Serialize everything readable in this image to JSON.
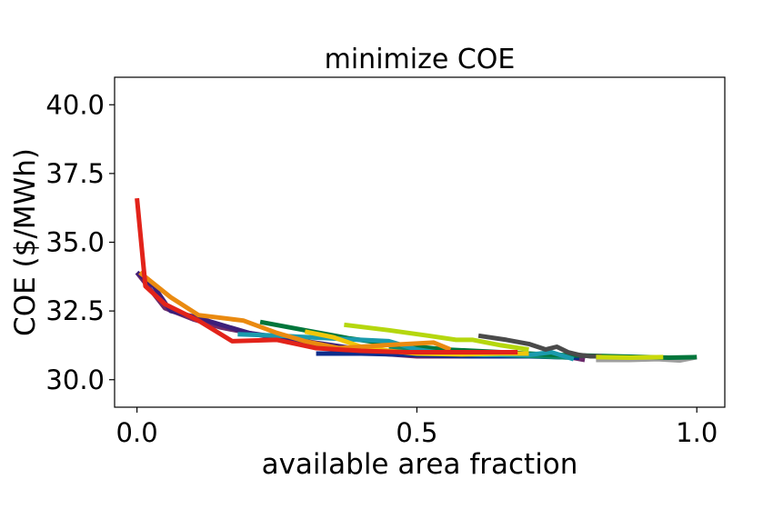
{
  "chart_data": {
    "type": "line",
    "title": "minimize COE",
    "xlabel": "available area fraction",
    "ylabel": "COE ($/MWh)",
    "xlim": [
      -0.04,
      1.05
    ],
    "ylim": [
      29.0,
      41.0
    ],
    "xticks": [
      {
        "value": 0.0,
        "label": "0.0"
      },
      {
        "value": 0.5,
        "label": "0.5"
      },
      {
        "value": 1.0,
        "label": "1.0"
      }
    ],
    "yticks": [
      {
        "value": 30.0,
        "label": "30.0"
      },
      {
        "value": 32.5,
        "label": "32.5"
      },
      {
        "value": 35.0,
        "label": "35.0"
      },
      {
        "value": 37.5,
        "label": "37.5"
      },
      {
        "value": 40.0,
        "label": "40.0"
      }
    ],
    "grid": false,
    "series": [
      {
        "color": "#9e9e9e",
        "x": [
          0.82,
          0.88,
          0.93,
          0.97,
          1.0
        ],
        "y": [
          30.72,
          30.72,
          30.75,
          30.7,
          30.82
        ]
      },
      {
        "color": "#6b2a6b",
        "x": [
          0.0,
          0.05,
          0.1,
          0.15,
          0.2,
          0.3,
          0.4,
          0.5,
          0.6,
          0.7,
          0.75,
          0.8
        ],
        "y": [
          33.9,
          32.6,
          32.2,
          31.9,
          31.7,
          31.3,
          31.0,
          30.85,
          30.85,
          30.85,
          30.9,
          30.72
        ]
      },
      {
        "color": "#3d1f7a",
        "x": [
          0.0,
          0.03,
          0.06,
          0.1,
          0.15,
          0.2,
          0.3,
          0.4,
          0.5,
          0.6,
          0.7
        ],
        "y": [
          33.9,
          33.4,
          32.5,
          32.3,
          32.0,
          31.7,
          31.4,
          31.1,
          31.0,
          30.95,
          30.9
        ]
      },
      {
        "color": "#0d2d8c",
        "x": [
          0.32,
          0.4,
          0.5,
          0.6,
          0.7,
          0.79
        ],
        "y": [
          30.95,
          30.95,
          30.9,
          30.85,
          30.85,
          30.8
        ]
      },
      {
        "color": "#0e8b6b",
        "x": [
          0.45,
          0.55,
          0.65,
          0.72,
          0.78
        ],
        "y": [
          31.2,
          31.05,
          30.9,
          30.85,
          30.8
        ]
      },
      {
        "color": "#00763b",
        "x": [
          0.22,
          0.3,
          0.38,
          0.45,
          0.55,
          0.65,
          0.75,
          0.85,
          0.95,
          1.0
        ],
        "y": [
          32.1,
          31.8,
          31.5,
          31.3,
          31.1,
          31.0,
          30.9,
          30.85,
          30.8,
          30.82
        ]
      },
      {
        "color": "#1a9aad",
        "x": [
          0.18,
          0.25,
          0.35,
          0.45,
          0.5,
          0.55,
          0.62,
          0.7,
          0.74,
          0.78
        ],
        "y": [
          31.65,
          31.6,
          31.5,
          31.4,
          31.1,
          30.95,
          30.9,
          30.9,
          31.0,
          30.75
        ]
      },
      {
        "color": "#4a4a4a",
        "x": [
          0.61,
          0.66,
          0.7,
          0.73,
          0.75,
          0.77,
          0.79,
          0.81,
          0.83
        ],
        "y": [
          31.6,
          31.45,
          31.3,
          31.1,
          31.2,
          31.0,
          30.9,
          30.85,
          30.85
        ]
      },
      {
        "color": "#b5d70e",
        "x": [
          0.37,
          0.45,
          0.52,
          0.57,
          0.6,
          0.65,
          0.7
        ],
        "y": [
          32.0,
          31.8,
          31.6,
          31.45,
          31.45,
          31.25,
          31.1
        ]
      },
      {
        "color": "#c9d90a",
        "x": [
          0.82,
          0.88,
          0.94
        ],
        "y": [
          30.82,
          30.8,
          30.82
        ]
      },
      {
        "color": "#f0c60a",
        "x": [
          0.3,
          0.35,
          0.4,
          0.45,
          0.5,
          0.58,
          0.65,
          0.7
        ],
        "y": [
          31.75,
          31.55,
          31.2,
          31.05,
          30.95,
          30.92,
          30.95,
          30.95
        ]
      },
      {
        "color": "#ea8a10",
        "x": [
          0.005,
          0.06,
          0.11,
          0.19,
          0.25,
          0.3,
          0.36,
          0.44,
          0.53,
          0.56
        ],
        "y": [
          33.9,
          33.0,
          32.35,
          32.15,
          31.7,
          31.4,
          31.15,
          31.25,
          31.35,
          31.1
        ]
      },
      {
        "color": "#e2231a",
        "x": [
          0.0,
          0.015,
          0.05,
          0.11,
          0.17,
          0.25,
          0.32,
          0.4,
          0.48,
          0.55,
          0.68
        ],
        "y": [
          36.6,
          33.4,
          32.75,
          32.15,
          31.4,
          31.45,
          31.15,
          31.05,
          31.0,
          31.0,
          31.0
        ]
      }
    ]
  }
}
